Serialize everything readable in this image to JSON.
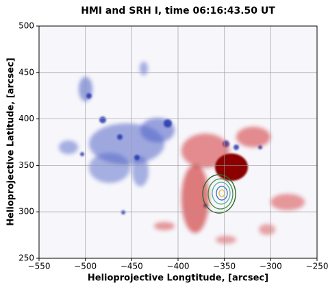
{
  "chart_data": {
    "type": "image",
    "title": "HMI and SRH I, time 06:16:43.50 UT",
    "x_label": "Helioprojective Longtitude, [arcsec]",
    "y_label": "Helioprojective Latitude, [arcsec]",
    "xlim": [
      -550,
      -250
    ],
    "ylim": [
      250,
      500
    ],
    "xticks": [
      {
        "value": -550,
        "label": "−550"
      },
      {
        "value": -500,
        "label": "−500"
      },
      {
        "value": -450,
        "label": "−450"
      },
      {
        "value": -400,
        "label": "−400"
      },
      {
        "value": -350,
        "label": "−350"
      },
      {
        "value": -300,
        "label": "−300"
      },
      {
        "value": -250,
        "label": "−250"
      }
    ],
    "yticks": [
      250,
      300,
      350,
      400,
      450,
      500
    ],
    "grid": true
  }
}
